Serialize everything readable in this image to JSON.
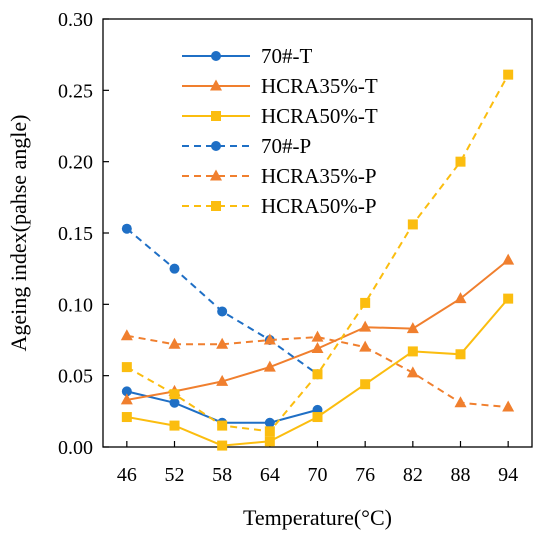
{
  "chart_data": {
    "type": "line",
    "title": "",
    "xlabel": "Temperature(°C)",
    "ylabel": "Ageing index(pahse angle)",
    "x": [
      46,
      52,
      58,
      64,
      70,
      76,
      82,
      88,
      94
    ],
    "xlim": [
      43,
      97
    ],
    "ylim": [
      0,
      0.3
    ],
    "yticks": [
      "0.00",
      "0.05",
      "0.10",
      "0.15",
      "0.20",
      "0.25",
      "0.30"
    ],
    "grid": false,
    "legend_position": "top-left-inside",
    "series": [
      {
        "name": "70#-T",
        "color": "#1f6fc5",
        "marker": "circle",
        "dash": "solid",
        "values": [
          0.039,
          0.031,
          0.017,
          0.017,
          0.026,
          null,
          null,
          null,
          null
        ]
      },
      {
        "name": "HCRA35%-T",
        "color": "#f07f2e",
        "marker": "triangle",
        "dash": "solid",
        "values": [
          0.033,
          0.039,
          0.046,
          0.056,
          0.069,
          0.084,
          0.083,
          0.104,
          0.131
        ]
      },
      {
        "name": "HCRA50%-T",
        "color": "#fbbd0f",
        "marker": "square",
        "dash": "solid",
        "values": [
          0.021,
          0.015,
          0.001,
          0.004,
          0.021,
          0.044,
          0.067,
          0.065,
          0.104
        ]
      },
      {
        "name": "70#-P",
        "color": "#1f6fc5",
        "marker": "circle",
        "dash": "dashed",
        "values": [
          0.153,
          0.125,
          0.095,
          0.075,
          0.051,
          null,
          null,
          null,
          null
        ]
      },
      {
        "name": "HCRA35%-P",
        "color": "#f07f2e",
        "marker": "triangle",
        "dash": "dashed",
        "values": [
          0.078,
          0.072,
          0.072,
          0.075,
          0.077,
          0.07,
          0.052,
          0.031,
          0.028
        ]
      },
      {
        "name": "HCRA50%-P",
        "color": "#fbbd0f",
        "marker": "square",
        "dash": "dashed",
        "values": [
          0.056,
          0.037,
          0.015,
          0.011,
          0.051,
          0.101,
          0.156,
          0.2,
          0.261
        ]
      }
    ]
  }
}
